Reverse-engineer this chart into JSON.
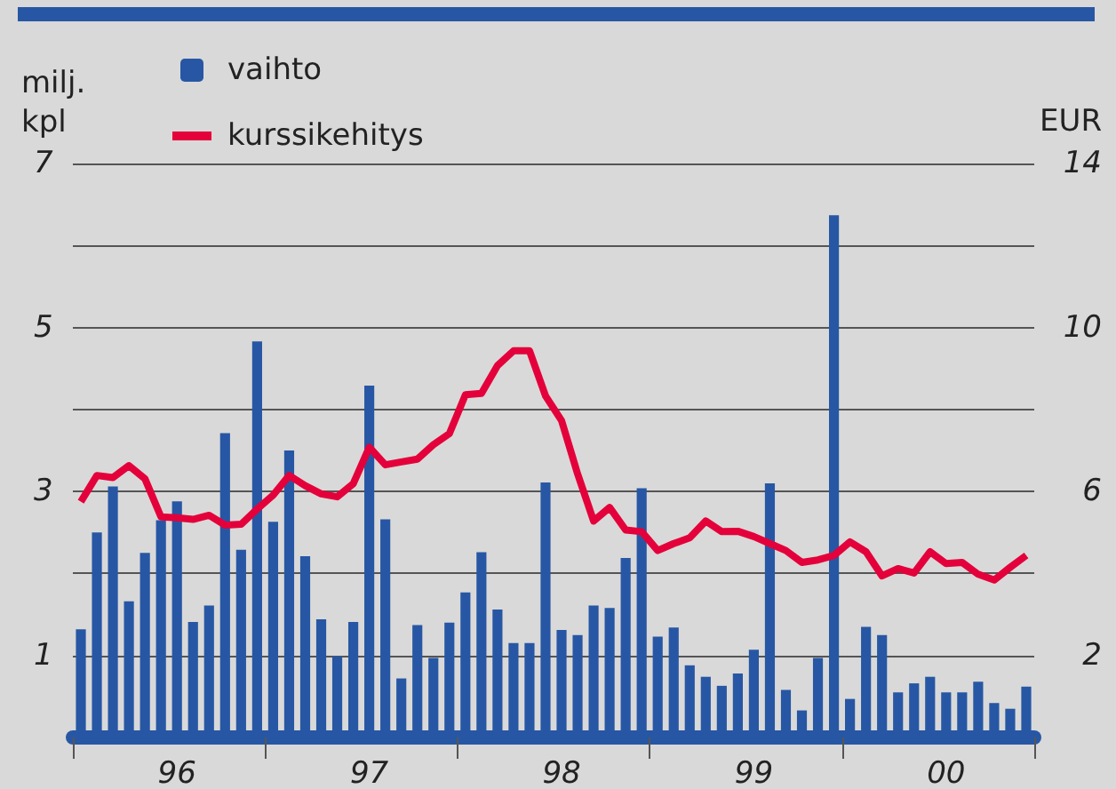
{
  "chart_data": {
    "type": "bar",
    "ylabel": "milj. kpl",
    "y2label": "EUR",
    "categories": [
      null,
      null,
      null,
      null,
      null,
      null,
      "96",
      null,
      null,
      null,
      null,
      null,
      null,
      null,
      null,
      null,
      null,
      null,
      "97",
      null,
      null,
      null,
      null,
      null,
      null,
      null,
      null,
      null,
      null,
      null,
      "98",
      null,
      null,
      null,
      null,
      null,
      null,
      null,
      null,
      null,
      null,
      null,
      "99",
      null,
      null,
      null,
      null,
      null,
      null,
      null,
      null,
      null,
      null,
      null,
      "00",
      null,
      null,
      null,
      null,
      null
    ],
    "series": [
      {
        "name": "vaihto",
        "color": "#2757a4",
        "values": [
          1.32,
          2.5,
          3.06,
          1.66,
          2.25,
          2.65,
          2.88,
          1.41,
          1.61,
          3.71,
          2.29,
          4.83,
          2.63,
          3.5,
          2.21,
          1.44,
          0.99,
          1.41,
          4.29,
          2.66,
          0.72,
          1.37,
          0.97,
          1.4,
          1.77,
          2.26,
          1.56,
          1.15,
          1.15,
          3.11,
          1.31,
          1.25,
          1.61,
          1.58,
          2.19,
          3.04,
          1.23,
          1.34,
          0.88,
          0.74,
          0.63,
          0.78,
          1.07,
          3.1,
          0.58,
          0.33,
          0.97,
          6.37,
          0.47,
          1.35,
          1.25,
          0.55,
          0.66,
          0.74,
          0.55,
          0.55,
          0.68,
          0.42,
          0.35,
          0.62
        ]
      },
      {
        "name": "kurssikehitys",
        "type": "line",
        "axis": "y2",
        "color": "#e4003a",
        "marker": "none",
        "line_style": "solid",
        "values": [
          5.75,
          6.39,
          6.34,
          6.63,
          6.31,
          5.38,
          5.36,
          5.32,
          5.42,
          5.18,
          5.2,
          5.57,
          5.91,
          6.39,
          6.14,
          5.94,
          5.87,
          6.19,
          7.08,
          6.65,
          6.72,
          6.79,
          7.14,
          7.41,
          8.36,
          8.39,
          9.07,
          9.43,
          9.43,
          8.33,
          7.73,
          6.43,
          5.28,
          5.61,
          5.06,
          5.02,
          4.56,
          4.73,
          4.87,
          5.28,
          5.02,
          5.03,
          4.9,
          4.73,
          4.56,
          4.27,
          4.33,
          4.44,
          4.77,
          4.53,
          3.94,
          4.12,
          4.01,
          4.53,
          4.24,
          4.27,
          3.98,
          3.84,
          4.15,
          4.44
        ]
      }
    ],
    "ylim": [
      0,
      7
    ],
    "yticks": [
      1,
      {
        "value": 2,
        "label": null
      },
      3,
      {
        "value": 4,
        "label": null
      },
      5,
      {
        "value": 6,
        "label": null
      },
      7
    ],
    "y2lim": [
      0,
      14
    ],
    "y2ticks": [
      2,
      {
        "value": 4,
        "label": null
      },
      6,
      {
        "value": 8,
        "label": null
      },
      10,
      {
        "value": 12,
        "label": null
      },
      14
    ],
    "grid": "y",
    "legend": "top left"
  }
}
